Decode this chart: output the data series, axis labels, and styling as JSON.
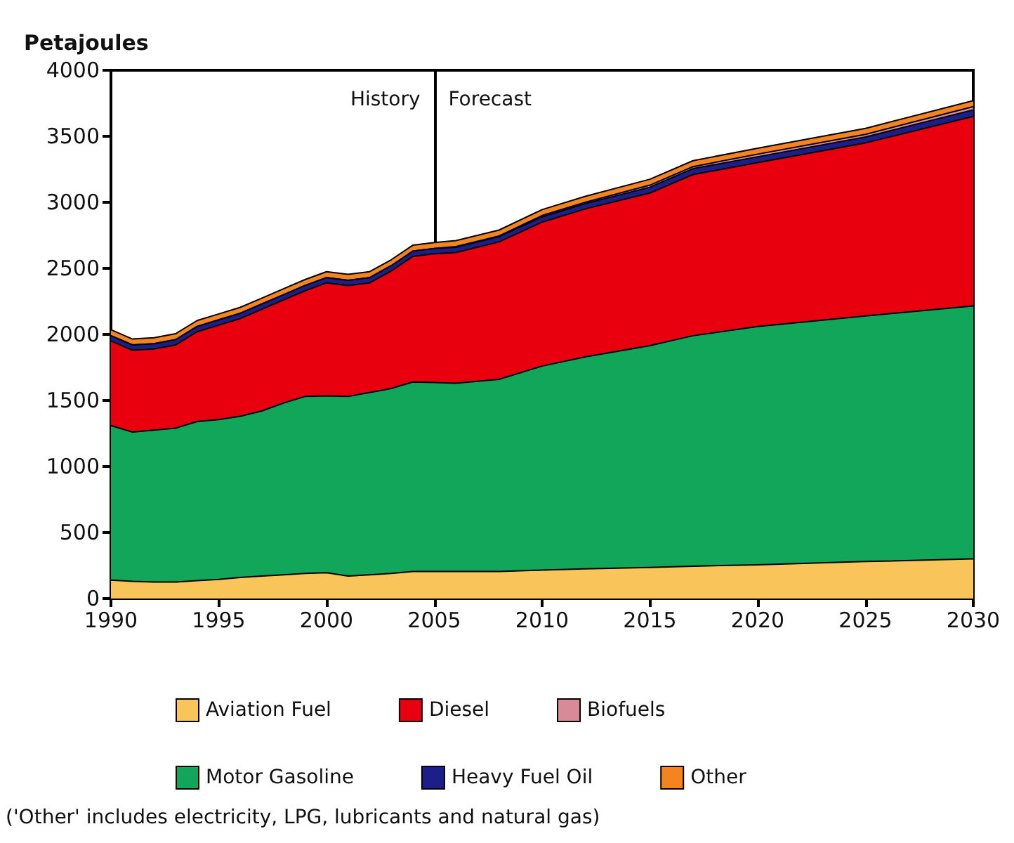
{
  "chart_data": {
    "type": "area",
    "stacked": true,
    "ylabel": "Petajoules",
    "x": [
      1990,
      1991,
      1992,
      1993,
      1994,
      1995,
      1996,
      1997,
      1998,
      1999,
      2000,
      2001,
      2002,
      2003,
      2004,
      2005,
      2006,
      2008,
      2010,
      2012,
      2015,
      2017,
      2020,
      2025,
      2030
    ],
    "series": [
      {
        "name": "Aviation Fuel",
        "color": "#f9c55a",
        "values": [
          140,
          130,
          125,
          125,
          135,
          145,
          160,
          170,
          180,
          190,
          195,
          170,
          180,
          190,
          205,
          205,
          205,
          205,
          215,
          225,
          235,
          245,
          255,
          280,
          300
        ]
      },
      {
        "name": "Motor Gasoline",
        "color": "#11a65a",
        "values": [
          1170,
          1130,
          1150,
          1165,
          1205,
          1210,
          1220,
          1250,
          1300,
          1340,
          1340,
          1360,
          1380,
          1400,
          1435,
          1430,
          1425,
          1455,
          1545,
          1605,
          1680,
          1745,
          1805,
          1860,
          1915
        ]
      },
      {
        "name": "Diesel",
        "color": "#e8000e",
        "values": [
          640,
          620,
          615,
          630,
          680,
          715,
          740,
          770,
          780,
          800,
          855,
          840,
          830,
          890,
          950,
          975,
          990,
          1040,
          1090,
          1120,
          1155,
          1220,
          1240,
          1310,
          1435
        ]
      },
      {
        "name": "Heavy Fuel Oil",
        "color": "#1c1f8a",
        "values": [
          40,
          40,
          40,
          40,
          40,
          40,
          40,
          40,
          40,
          40,
          40,
          40,
          40,
          40,
          40,
          40,
          40,
          40,
          40,
          40,
          45,
          45,
          45,
          45,
          50
        ]
      },
      {
        "name": "Biofuels",
        "color": "#d88a98",
        "values": [
          0,
          0,
          0,
          0,
          0,
          0,
          0,
          0,
          0,
          0,
          0,
          0,
          0,
          0,
          0,
          0,
          5,
          5,
          10,
          10,
          15,
          15,
          20,
          20,
          25
        ]
      },
      {
        "name": "Other",
        "color": "#f5841f",
        "values": [
          45,
          45,
          45,
          45,
          45,
          45,
          45,
          45,
          45,
          45,
          45,
          45,
          45,
          45,
          45,
          45,
          45,
          45,
          45,
          45,
          45,
          45,
          45,
          45,
          45
        ]
      }
    ],
    "xlim": [
      1990,
      2030
    ],
    "xticks": [
      1990,
      1995,
      2000,
      2005,
      2010,
      2015,
      2020,
      2025,
      2030
    ],
    "ylim": [
      0,
      4000
    ],
    "yticks": [
      0,
      500,
      1000,
      1500,
      2000,
      2500,
      3000,
      3500,
      4000
    ],
    "grid": false,
    "legend": "bottom",
    "ref_lines": [
      {
        "axis": "x",
        "value": 2005,
        "color": "#000000"
      }
    ],
    "annotations": [
      "History",
      "Forecast",
      "('Other' includes electricity, LPG, lubricants and natural gas)"
    ]
  }
}
